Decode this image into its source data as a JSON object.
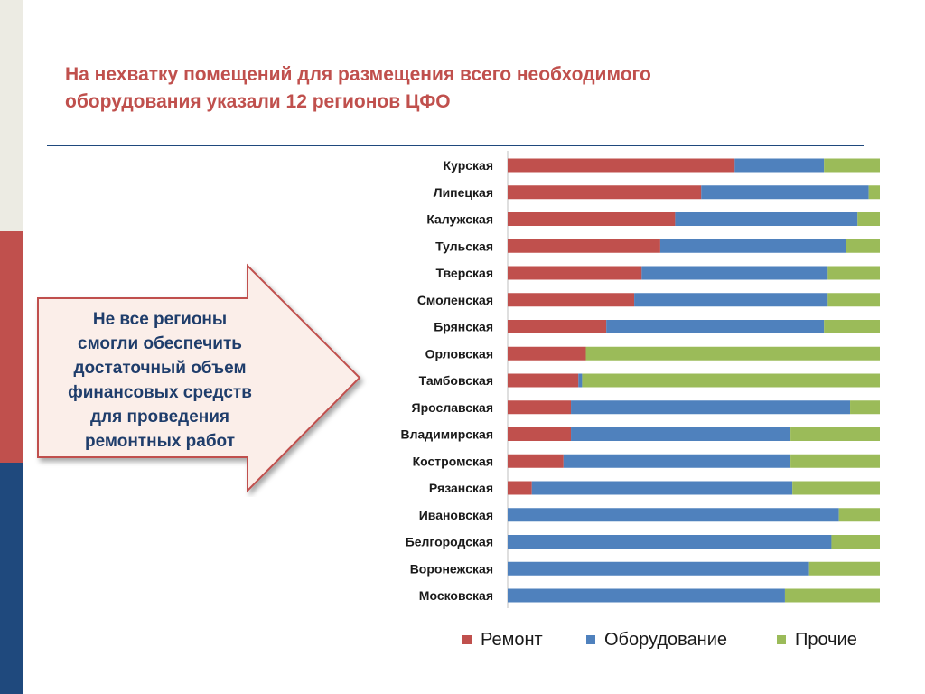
{
  "title_lines": [
    "На нехватку помещений для размещения всего необходимого",
    "оборудования указали 12 регионов ЦФО"
  ],
  "arrow_lines": [
    "Не все регионы",
    "смогли обеспечить",
    "достаточный объем",
    "финансовых средств",
    "для проведения",
    "ремонтных работ"
  ],
  "colors": {
    "accent_red": "#c0504d",
    "accent_blue": "#1f497d",
    "series_red": "#c0504d",
    "series_blue": "#4f81bd",
    "series_green": "#9bbb59"
  },
  "chart_data": {
    "type": "bar",
    "orientation": "horizontal",
    "stacked": "percent",
    "categories": [
      "Курская",
      "Липецкая",
      "Калужская",
      "Тульская",
      "Тверская",
      "Смоленская",
      "Брянская",
      "Орловская",
      "Тамбовская",
      "Ярославская",
      "Владимирская",
      "Костромская",
      "Рязанская",
      "Ивановская",
      "Белгородская",
      "Воронежская",
      "Московская"
    ],
    "series": [
      {
        "name": "Ремонт",
        "color": "#c0504d",
        "values": [
          61,
          52,
          45,
          41,
          36,
          34,
          26.5,
          21,
          19,
          17,
          17,
          15,
          6.5,
          0,
          0,
          0,
          0
        ]
      },
      {
        "name": "Оборудование",
        "color": "#4f81bd",
        "values": [
          24,
          45,
          49,
          50,
          50,
          52,
          58.5,
          0,
          1,
          75,
          59,
          61,
          70,
          89,
          87,
          81,
          74.5
        ]
      },
      {
        "name": "Прочие",
        "color": "#9bbb59",
        "values": [
          15,
          3,
          6,
          9,
          14,
          14,
          15,
          79,
          80,
          8,
          24,
          24,
          23.5,
          11,
          13,
          19,
          25.5
        ]
      }
    ],
    "xlim": [
      0,
      100
    ],
    "legend_position": "bottom"
  }
}
